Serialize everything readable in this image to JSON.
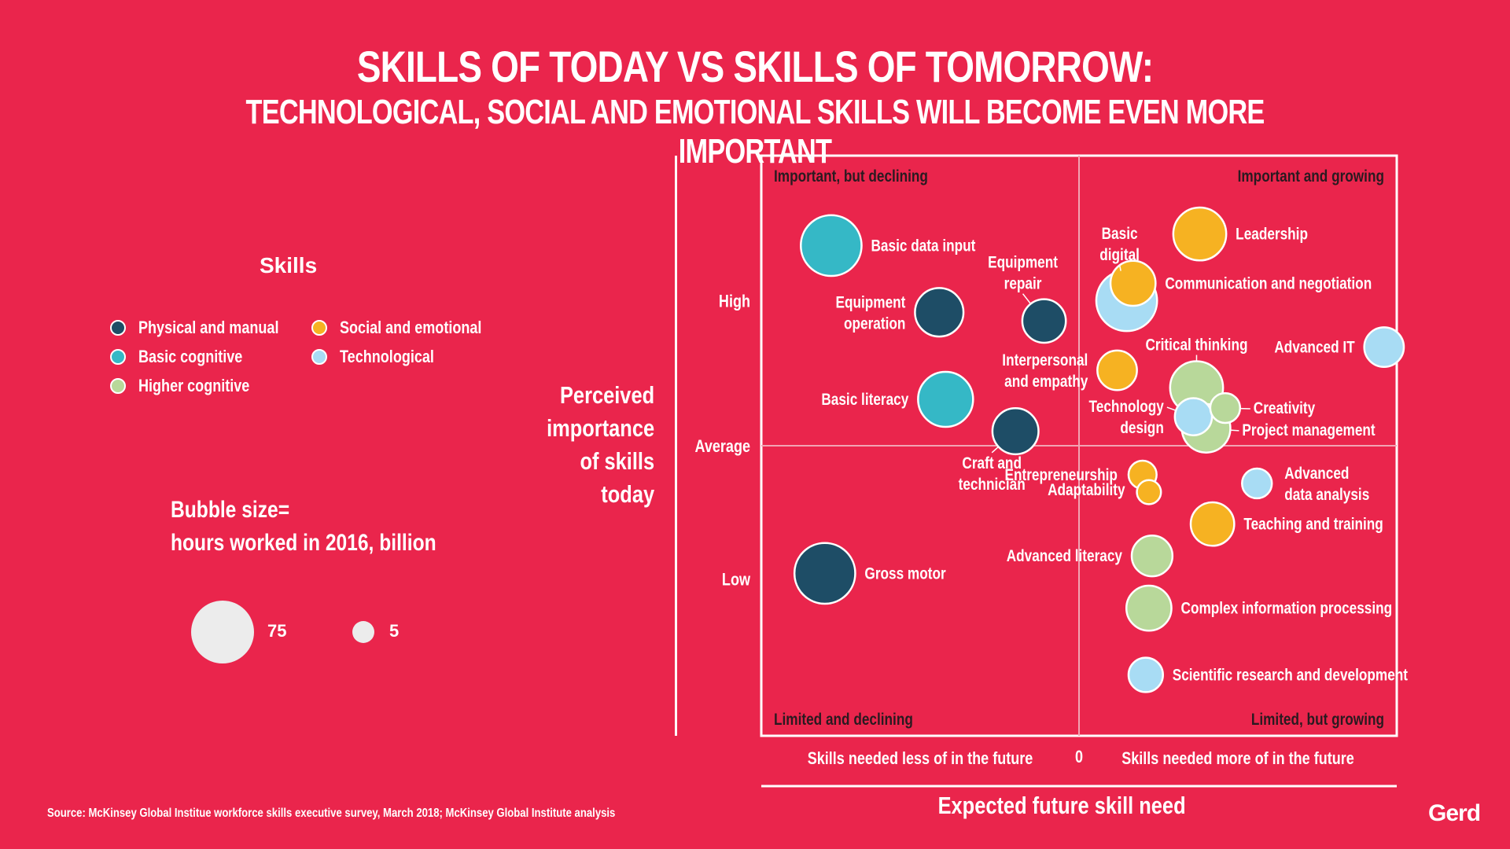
{
  "title": "SKILLS OF TODAY VS SKILLS OF TOMORROW:",
  "subtitle": "TECHNOLOGICAL, SOCIAL AND EMOTIONAL SKILLS WILL BECOME EVEN MORE IMPORTANT",
  "legend": {
    "heading": "Skills",
    "items": [
      {
        "label": "Physical and manual",
        "color": "#1e4d66"
      },
      {
        "label": "Basic cognitive",
        "color": "#35b8c6"
      },
      {
        "label": "Higher cognitive",
        "color": "#b8d89a"
      },
      {
        "label": "Social and emotional",
        "color": "#f6b222"
      },
      {
        "label": "Technological",
        "color": "#a8dcf4"
      }
    ],
    "size_line1": "Bubble size=",
    "size_line2": "hours worked in 2016, billion",
    "size_big": "75",
    "size_small": "5"
  },
  "axis": {
    "y_title_lines": [
      "Perceived",
      "importance",
      "of skills",
      "today"
    ],
    "x_title": "Expected future skill need",
    "x_left": "Skills needed less of in the future",
    "x_zero": "0",
    "x_right": "Skills needed more of in the future"
  },
  "source": "Source: McKinsey Global Institue workforce skills executive survey, March 2018; McKinsey Global Institute analysis",
  "logo": "Gerd",
  "chart_data": {
    "type": "scatter",
    "title": "SKILLS OF TODAY VS SKILLS OF TOMORROW:",
    "subtitle": "TECHNOLOGICAL, SOCIAL AND EMOTIONAL SKILLS WILL BECOME EVEN MORE IMPORTANT",
    "xlabel": "Expected future skill need",
    "ylabel": "Perceived importance of skills today",
    "xlim": [
      -100,
      100
    ],
    "ylim": [
      -100,
      100
    ],
    "grid": false,
    "legend_position": "left",
    "y_ticks": [
      {
        "label": "High",
        "value": 50
      },
      {
        "label": "Average",
        "value": 0
      },
      {
        "label": "Low",
        "value": -46
      }
    ],
    "quadrants": [
      {
        "label": "Important, but declining",
        "position": "top-left"
      },
      {
        "label": "Important and growing",
        "position": "top-right"
      },
      {
        "label": "Limited and declining",
        "position": "bottom-left"
      },
      {
        "label": "Limited, but growing",
        "position": "bottom-right"
      }
    ],
    "size_unit": "hours worked in 2016, billion",
    "points": [
      {
        "label": "Basic data input",
        "category": "Basic cognitive",
        "x": -78,
        "y": 69,
        "size": 75,
        "label_lines": [
          "Basic data input"
        ],
        "label_anchor": "start",
        "label_dx": 1,
        "label_dy": 0
      },
      {
        "label": "Equipment operation",
        "category": "Physical and manual",
        "x": -44,
        "y": 46,
        "size": 45,
        "label_lines": [
          "Equipment",
          "operation"
        ],
        "label_anchor": "end",
        "label_dx": -1,
        "label_dy": 0
      },
      {
        "label": "Equipment repair",
        "category": "Physical and manual",
        "x": -11,
        "y": 43,
        "size": 35,
        "label_lines": [
          "Equipment",
          "repair"
        ],
        "label_anchor": "middle",
        "label_dx": -0.9,
        "label_dy": 1.6,
        "leader": true
      },
      {
        "label": "Basic digital",
        "category": "Technological",
        "x": 15,
        "y": 50,
        "size": 75,
        "label_lines": [
          "Basic",
          "digital"
        ],
        "label_anchor": "middle",
        "label_dx": -0.3,
        "label_dy": 1.4,
        "leader": true
      },
      {
        "label": "Communication and negotiation",
        "category": "Social and emotional",
        "x": 17,
        "y": 56,
        "size": 38,
        "label_lines": [
          "Communication and negotiation"
        ],
        "label_anchor": "start",
        "label_dx": 1,
        "label_dy": 0
      },
      {
        "label": "Leadership",
        "category": "Social and emotional",
        "x": 38,
        "y": 73,
        "size": 55,
        "label_lines": [
          "Leadership"
        ],
        "label_anchor": "start",
        "label_dx": 1,
        "label_dy": 0
      },
      {
        "label": "Advanced IT",
        "category": "Technological",
        "x": 96,
        "y": 34,
        "size": 28,
        "label_lines": [
          "Advanced IT"
        ],
        "label_anchor": "end",
        "label_dx": -1,
        "label_dy": 0
      },
      {
        "label": "Interpersonal and empathy",
        "category": "Social and emotional",
        "x": 12,
        "y": 26,
        "size": 28,
        "label_lines": [
          "Interpersonal",
          "and empathy"
        ],
        "label_anchor": "end",
        "label_dx": -1,
        "label_dy": 0
      },
      {
        "label": "Critical thinking",
        "category": "Higher cognitive",
        "x": 37,
        "y": 20,
        "size": 55,
        "label_lines": [
          "Critical thinking"
        ],
        "label_anchor": "middle",
        "label_dx": 0,
        "label_dy": 1.4,
        "leader": true
      },
      {
        "label": "Creativity",
        "category": "Higher cognitive",
        "x": 46,
        "y": 13,
        "size": 14,
        "label_lines": [
          "Creativity"
        ],
        "label_anchor": "start",
        "label_dx": 1.5,
        "label_dy": 0,
        "leader": true
      },
      {
        "label": "Project management",
        "category": "Higher cognitive",
        "x": 40,
        "y": 6,
        "size": 45,
        "label_lines": [
          "Project management"
        ],
        "label_anchor": "start",
        "label_dx": 1.3,
        "label_dy": 0.2,
        "leader": true
      },
      {
        "label": "Technology design",
        "category": "Technological",
        "x": 36,
        "y": 10,
        "size": 24,
        "label_lines": [
          "Technology",
          "design"
        ],
        "label_anchor": "end",
        "label_dx": -1.2,
        "label_dy": 0,
        "leader": true
      },
      {
        "label": "Basic literacy",
        "category": "Basic cognitive",
        "x": -42,
        "y": 16,
        "size": 60,
        "label_lines": [
          "Basic literacy"
        ],
        "label_anchor": "end",
        "label_dx": -1,
        "label_dy": 0
      },
      {
        "label": "Craft and technician",
        "category": "Physical and manual",
        "x": -20,
        "y": 5,
        "size": 40,
        "label_lines": [
          "Craft and",
          "technician"
        ],
        "label_anchor": "middle",
        "label_dx": -1,
        "label_dy": -1.6,
        "leader": true
      },
      {
        "label": "Entrepreneurship",
        "category": "Social and emotional",
        "x": 20,
        "y": -10,
        "size": 12,
        "label_lines": [
          "Entrepreneurship"
        ],
        "label_anchor": "end",
        "label_dx": -1.2,
        "label_dy": 0
      },
      {
        "label": "Adaptability",
        "category": "Social and emotional",
        "x": 22,
        "y": -16,
        "size": 8,
        "label_lines": [
          "Adaptability"
        ],
        "label_anchor": "end",
        "label_dx": -1.3,
        "label_dy": -0.3
      },
      {
        "label": "Advanced data analysis",
        "category": "Technological",
        "x": 56,
        "y": -13,
        "size": 14,
        "label_lines": [
          "Advanced",
          "data analysis"
        ],
        "label_anchor": "start",
        "label_dx": 1.4,
        "label_dy": 0
      },
      {
        "label": "Teaching and training",
        "category": "Social and emotional",
        "x": 42,
        "y": -27,
        "size": 35,
        "label_lines": [
          "Teaching and training"
        ],
        "label_anchor": "start",
        "label_dx": 1,
        "label_dy": 0
      },
      {
        "label": "Advanced literacy",
        "category": "Higher cognitive",
        "x": 23,
        "y": -38,
        "size": 30,
        "label_lines": [
          "Advanced literacy"
        ],
        "label_anchor": "end",
        "label_dx": -1,
        "label_dy": 0
      },
      {
        "label": "Gross motor",
        "category": "Physical and manual",
        "x": -80,
        "y": -44,
        "size": 75,
        "label_lines": [
          "Gross motor"
        ],
        "label_anchor": "start",
        "label_dx": 1,
        "label_dy": 0
      },
      {
        "label": "Complex information processing",
        "category": "Higher cognitive",
        "x": 22,
        "y": -56,
        "size": 38,
        "label_lines": [
          "Complex information processing"
        ],
        "label_anchor": "start",
        "label_dx": 1,
        "label_dy": 0
      },
      {
        "label": "Scientific research and development",
        "category": "Technological",
        "x": 21,
        "y": -79,
        "size": 20,
        "label_lines": [
          "Scientific research and development"
        ],
        "label_anchor": "start",
        "label_dx": 1,
        "label_dy": 0
      }
    ]
  }
}
